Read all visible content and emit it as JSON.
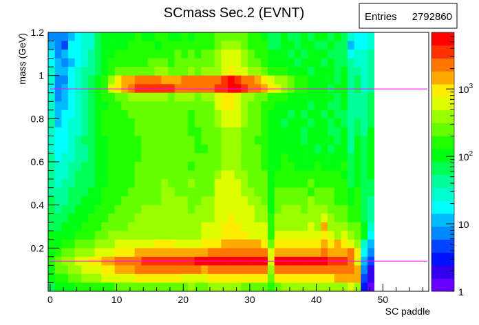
{
  "chart_data": {
    "type": "heatmap",
    "title": "SCmass Sec.2  (EVNT)",
    "xlabel": "SC paddle",
    "ylabel": "mass (GeV)",
    "stats": {
      "label": "Entries",
      "value": "2792860"
    },
    "xlim": [
      -0.3,
      56.9
    ],
    "ylim": [
      0,
      1.2
    ],
    "x_ticks": [
      {
        "v": 0,
        "label": "0"
      },
      {
        "v": 10,
        "label": "10"
      },
      {
        "v": 20,
        "label": "20"
      },
      {
        "v": 30,
        "label": "30"
      },
      {
        "v": 40,
        "label": "40"
      },
      {
        "v": 50,
        "label": "50"
      }
    ],
    "x_minor_step": 2,
    "y_ticks": [
      {
        "v": 0.2,
        "label": "0.2"
      },
      {
        "v": 0.4,
        "label": "0.4"
      },
      {
        "v": 0.6,
        "label": "0.6"
      },
      {
        "v": 0.8,
        "label": "0.8"
      },
      {
        "v": 1.0,
        "label": "1"
      },
      {
        "v": 1.2,
        "label": "1.2"
      }
    ],
    "y_minor_step": 0.04,
    "x_bin_width": 1,
    "y_bin_width": 0.04,
    "z_scale": "log",
    "zlim": [
      1,
      6900
    ],
    "z_ticks": [
      {
        "v": 1,
        "label": "1",
        "exp": ""
      },
      {
        "v": 10,
        "label": "10",
        "exp": ""
      },
      {
        "v": 100,
        "label": "10",
        "exp": "2"
      },
      {
        "v": 1000,
        "label": "10",
        "exp": "3"
      }
    ],
    "palette": [
      "#6600ff",
      "#3300ee",
      "#0011ff",
      "#0044ff",
      "#0088ff",
      "#00bbff",
      "#00ffff",
      "#00ffcc",
      "#00ff99",
      "#00ff55",
      "#00ff11",
      "#22ff00",
      "#66ff00",
      "#99ff00",
      "#ddff00",
      "#ffee00",
      "#ffaa00",
      "#ff7700",
      "#ff3300",
      "#ff0000"
    ],
    "level_key": "0123456789abcdefghij",
    "rows_top_to_bottom": [
      "4|44|56|77|9|aaa|aabaabbaabab|b|bcccccb|ba|9|9a99a9a|a9a9|76|6|7",
      "5|43|66|77|9|aaa|abbbbabbbbbb|b|bcdddcb|bb|9|9aa9aa9|9a99|56|6|7",
      "6|45|66|78|9|aab|bbbbbbbbcbcb|c|cdeeedc|bb|a|aa9a9aa|a999|67|7|8",
      "6|54|56|78|9|abb|bbbbcccbcccc|c|cdeeedc|cb|a|aaa9aaa|9a99|87|7|8",
      "7|55|67|88|9|abc|cccccddcccdc|d|ddefeed|dc|b|bbaaa9a|aa9a|88|7|8",
      "7|44|67|89|a|bdf|gghhhhggghhh|h|hhijihh|gf|e|ddcbbaa|aa9a|89|7|8",
      "6|45|67|89|a|bef|ghiiiiiihhhh|h|hiijjih|hg|f|edcbbaa|a9aa|89|7|8",
      "7|45|67|89|a|bbc|cddddddcdddc|d|deffedd|cc|b|bbaaaaa|aa9a|88|8|9",
      "7|55|67|89|a|abb|cccccccccccc|c|ceffedc|cb|b|aaaaa9a|a99a|88|8|9",
      "7|56|67|89|a|bbb|bcccccccccbc|c|cdeeedc|cb|a|aa9a9aa|9a99|88|8|9",
      "8|56|77|89|a|bbb|bbccccccccbc|c|cdeeedc|cb|a|a9aaa9a|a9a9|89|8|9",
      "7|66|77|89|a|bbb|bbccccccccbb|c|ccdddcc|cb|a|aaaa9aa|a99a|89|8|a",
      "7|66|78|99|a|abb|bbbccccccccb|c|ccdddcc|bb|a|aaaa9aa|aa9a|8a|9|a",
      "7|66|78|89|a|abb|bbbccccccccb|b|ccdddcc|cb|a|aaaaaa9|a9aa|8a|9|a",
      "8|67|78|89|a|abb|bbbccccccccc|c|ccdddcc|cb|a|abaaaaa|aaaa|9a|9|a",
      "8|77|88|99|a|abb|bbccccccccbc|c|ccdddcc|cb|a|abbaaab|aaab|9a|9|a",
      "8|77|89|99|a|abb|bbcccccccccc|c|cdeeddc|cc|a|bbbbbbb|bbba|9a|9|a",
      "8|78|89|99|a|abb|bbccccdcccdc|c|ceeeedc|cc|a|bbbbbcb|bbbb|9a|9|9",
      "8|88|99|9a|a|bbb|bcccccddcccc|c|ceeeedd|cc|a|cccccbc|ccbb|ab|9|9",
      "9|88|99|aa|a|bbb|ccccccddddcc|d|deeeeed|dc|a|cccccdc|ccbb|ab|9|8",
      "9|89|9a|aa|b|bbc|cccdddddddcd|d|deeeeee|dd|a|cdddcdd|dccc|bb|9|8",
      "9|99|aa|ab|b|bcc|ccdddddddddd|d|deefeee|dd|b|ddddddd|edcc|bb|9|8",
      "9|9a|aa|bb|b|ccc|cddddddddddd|e|eefffee|ee|b|ddddded|gddd|cc|a|7",
      "a|aa|ab|bb|c|cdd|dddddddddddd|e|eeffffe|ee|b|eeeeeee|fede|dc|a|6",
      "a|ab|bc|cc|d|dde|eeeeefffeeee|f|ffggggg|gf|c|fffffff|gfgf|ed|7|5",
      "a|bc|cd|dd|e|eef|ffgggggggggg|g|hhhhhhh|hh|e|ggggggg|hggg|hf|6|4",
      "b|cd|de|ef|f|ggh|hhhiiiiiiiij|j|jjjjjjj|jj|e|jjjjjjj|jiii|he|5|3",
      "a|cc|dd|ee|e|ffg|gghhhhhhhhhh|g|hhhhhhh|hh|d|hhhhhhh|hhhh|hg|4|1",
      "a|bb|cc|dd|d|eee|eefffffffeee|e|fffffff|ff|c|fffffff|ffgg|gg|3|1",
      "9|aa|ab|bb|b|bbc|ccccccccccdc|c|dddddcc|cc|b|cdddddd|dddd|ed|2|0"
    ],
    "reference_lines": [
      {
        "y": 0.938,
        "x_from": 0,
        "color": "#ff00ff"
      },
      {
        "y": 0.1396,
        "x_from": 0,
        "color": "#ff00ff"
      }
    ]
  }
}
